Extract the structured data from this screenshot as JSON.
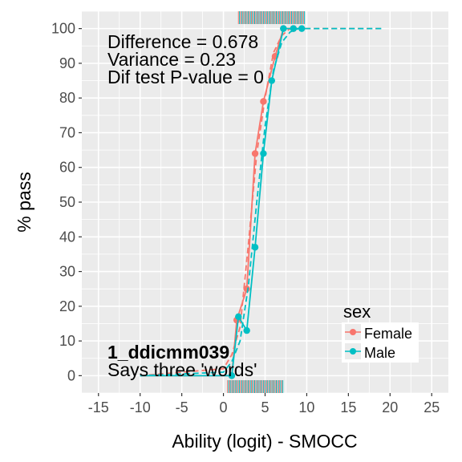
{
  "chart_data": {
    "type": "line",
    "xlabel": "Ability (logit) - SMOCC",
    "ylabel": "% pass",
    "xlim": [
      -17,
      27
    ],
    "ylim": [
      -5,
      105
    ],
    "xticks": [
      -15,
      -10,
      -5,
      0,
      5,
      10,
      15,
      20,
      25
    ],
    "yticks": [
      0,
      10,
      20,
      30,
      40,
      50,
      60,
      70,
      80,
      90,
      100
    ],
    "grid": true,
    "legend": {
      "title": "sex",
      "placement": "bottom-right",
      "entries": [
        "Female",
        "Male"
      ]
    },
    "annotations": {
      "stats": [
        "Difference = 0.678",
        "Variance = 0.23",
        "Dif test P-value = 0"
      ],
      "item_code": "1_ddicmm039",
      "item_label": "Says three 'words'"
    },
    "series": [
      {
        "name": "Female",
        "color": "#F8766D",
        "observed": [
          {
            "x": -10,
            "y": 0
          },
          {
            "x": 1,
            "y": 0
          },
          {
            "x": 1.6,
            "y": 16
          },
          {
            "x": 2.8,
            "y": 25
          },
          {
            "x": 3.8,
            "y": 64
          },
          {
            "x": 4.8,
            "y": 79
          },
          {
            "x": 6.2,
            "y": 92
          },
          {
            "x": 7.2,
            "y": 100
          },
          {
            "x": 8.4,
            "y": 100
          }
        ],
        "fitted": [
          {
            "x": -10,
            "y": 0
          },
          {
            "x": 0,
            "y": 2
          },
          {
            "x": 1,
            "y": 6
          },
          {
            "x": 2,
            "y": 14
          },
          {
            "x": 3,
            "y": 38
          },
          {
            "x": 4,
            "y": 64
          },
          {
            "x": 5,
            "y": 80
          },
          {
            "x": 6,
            "y": 93
          },
          {
            "x": 7,
            "y": 98
          },
          {
            "x": 8,
            "y": 100
          },
          {
            "x": 19,
            "y": 100
          }
        ]
      },
      {
        "name": "Male",
        "color": "#00BFC4",
        "observed": [
          {
            "x": -10,
            "y": 0
          },
          {
            "x": 1,
            "y": 0
          },
          {
            "x": 1.8,
            "y": 17
          },
          {
            "x": 2.8,
            "y": 13
          },
          {
            "x": 3.8,
            "y": 37
          },
          {
            "x": 4.8,
            "y": 64
          },
          {
            "x": 5.8,
            "y": 85
          },
          {
            "x": 7.2,
            "y": 100
          },
          {
            "x": 8.4,
            "y": 100
          },
          {
            "x": 9.4,
            "y": 100
          }
        ],
        "fitted": [
          {
            "x": -10,
            "y": 0
          },
          {
            "x": 0,
            "y": 1
          },
          {
            "x": 1,
            "y": 4
          },
          {
            "x": 2,
            "y": 10
          },
          {
            "x": 3,
            "y": 26
          },
          {
            "x": 4,
            "y": 50
          },
          {
            "x": 5,
            "y": 72
          },
          {
            "x": 6,
            "y": 88
          },
          {
            "x": 7,
            "y": 96
          },
          {
            "x": 8,
            "y": 99
          },
          {
            "x": 9,
            "y": 100
          },
          {
            "x": 19,
            "y": 100
          }
        ]
      }
    ],
    "rug": {
      "bottom_range": [
        0.5,
        7.2
      ],
      "top_range": [
        1.8,
        9.8
      ]
    }
  }
}
